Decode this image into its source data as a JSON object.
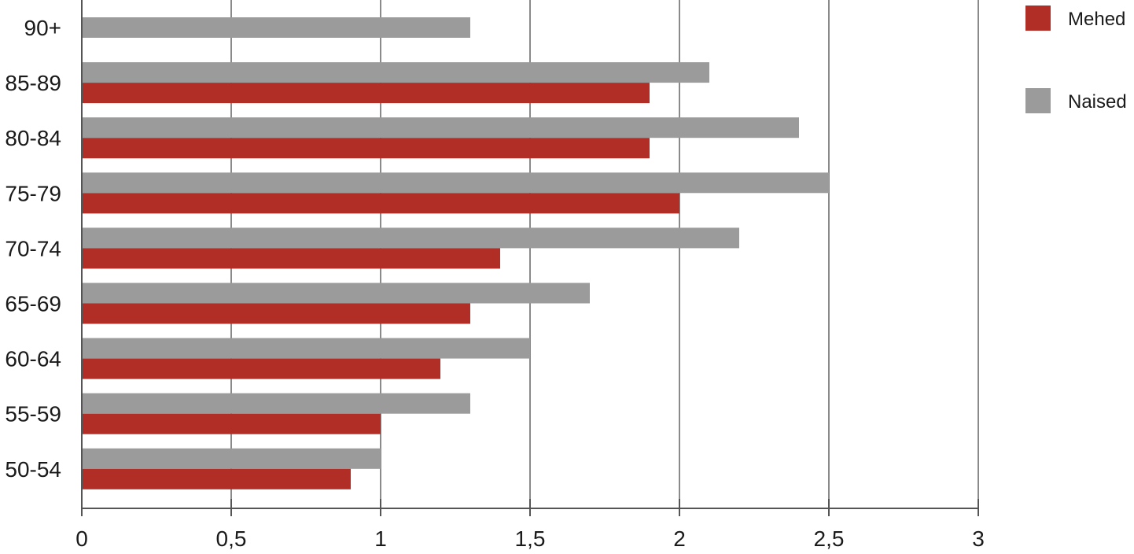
{
  "chart_data": {
    "type": "bar",
    "orientation": "horizontal",
    "categories": [
      "90+",
      "85-89",
      "80-84",
      "75-79",
      "70-74",
      "65-69",
      "60-64",
      "55-59",
      "50-54"
    ],
    "series": [
      {
        "name": "Naised",
        "color": "#9b9b9b",
        "values": [
          1.3,
          2.1,
          2.4,
          2.5,
          2.2,
          1.7,
          1.5,
          1.3,
          1.0
        ]
      },
      {
        "name": "Mehed",
        "color": "#b02e26",
        "values": [
          null,
          1.9,
          1.9,
          2.0,
          1.4,
          1.3,
          1.2,
          1.0,
          0.9
        ]
      }
    ],
    "xlim": [
      0,
      3
    ],
    "x_ticks": [
      0,
      0.5,
      1,
      1.5,
      2,
      2.5,
      3
    ],
    "x_tick_labels": [
      "0",
      "0,5",
      "1",
      "1,5",
      "2",
      "2,5",
      "3"
    ],
    "grid": "vertical",
    "legend": {
      "position": "top-right",
      "entries": [
        {
          "name": "Mehed",
          "color": "#b02e26"
        },
        {
          "name": "Naised",
          "color": "#9b9b9b"
        }
      ]
    }
  }
}
